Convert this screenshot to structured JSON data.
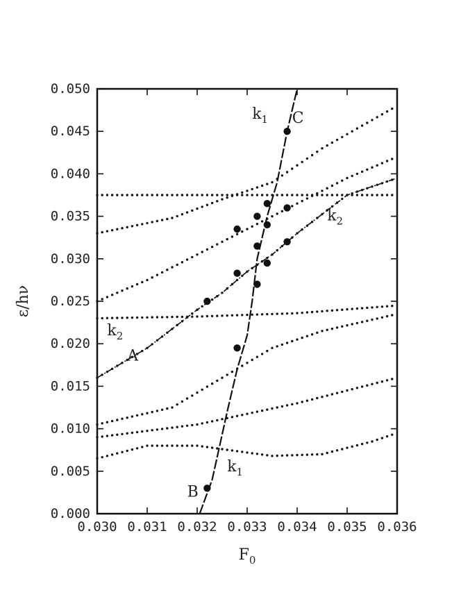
{
  "chart_data": {
    "type": "scatter",
    "xlabel": "F",
    "xlabel_sub": "0",
    "ylabel": "ε/hν",
    "xlim": [
      0.03,
      0.036
    ],
    "ylim": [
      0.0,
      0.05
    ],
    "x_ticks": [
      "0.030",
      "0.031",
      "0.032",
      "0.033",
      "0.034",
      "0.035",
      "0.036"
    ],
    "y_ticks": [
      "0.000",
      "0.005",
      "0.010",
      "0.015",
      "0.020",
      "0.025",
      "0.030",
      "0.035",
      "0.040",
      "0.045",
      "0.050"
    ],
    "grid": false,
    "dotted_curves": [
      {
        "x": [
          0.03,
          0.032,
          0.034,
          0.036
        ],
        "y": [
          0.0375,
          0.0375,
          0.0375,
          0.0375
        ]
      },
      {
        "x": [
          0.03,
          0.032,
          0.034,
          0.036
        ],
        "y": [
          0.023,
          0.0232,
          0.0236,
          0.0245
        ]
      },
      {
        "x": [
          0.03,
          0.031,
          0.032,
          0.0335,
          0.0345,
          0.0355,
          0.036
        ],
        "y": [
          0.0065,
          0.008,
          0.008,
          0.0068,
          0.007,
          0.0085,
          0.0095
        ]
      },
      {
        "x": [
          0.03,
          0.032,
          0.034,
          0.036
        ],
        "y": [
          0.009,
          0.0105,
          0.013,
          0.016
        ]
      },
      {
        "x": [
          0.03,
          0.0315,
          0.0325,
          0.0335,
          0.0345,
          0.036
        ],
        "y": [
          0.0105,
          0.0125,
          0.016,
          0.0195,
          0.0215,
          0.0235
        ]
      },
      {
        "x": [
          0.03,
          0.0315,
          0.0325,
          0.0335,
          0.0345,
          0.036
        ],
        "y": [
          0.033,
          0.0348,
          0.037,
          0.039,
          0.043,
          0.048
        ]
      },
      {
        "x": [
          0.03,
          0.031,
          0.032,
          0.0325,
          0.033,
          0.0335,
          0.034,
          0.035,
          0.036
        ],
        "y": [
          0.025,
          0.0275,
          0.0305,
          0.032,
          0.0335,
          0.035,
          0.0365,
          0.0395,
          0.042
        ]
      },
      {
        "x": [
          0.03,
          0.031,
          0.032,
          0.0325,
          0.033,
          0.0335,
          0.034,
          0.035,
          0.036
        ],
        "y": [
          0.016,
          0.0195,
          0.024,
          0.026,
          0.0285,
          0.0305,
          0.033,
          0.0375,
          0.0395
        ]
      }
    ],
    "curves": [
      {
        "x": [
          0.03205,
          0.0323,
          0.0326,
          0.0328,
          0.033,
          0.0331,
          0.0332,
          0.0334,
          0.0336,
          0.0338,
          0.034
        ],
        "y": [
          0.0,
          0.004,
          0.012,
          0.017,
          0.021,
          0.025,
          0.03,
          0.035,
          0.039,
          0.045,
          0.05
        ]
      },
      {
        "x": [
          0.03,
          0.031,
          0.032,
          0.0325,
          0.033,
          0.0335,
          0.034,
          0.035,
          0.036
        ],
        "y": [
          0.016,
          0.0195,
          0.024,
          0.026,
          0.0285,
          0.0305,
          0.033,
          0.0375,
          0.0395
        ]
      }
    ],
    "marked_points": [
      {
        "x": 0.0322,
        "y": 0.003
      },
      {
        "x": 0.0328,
        "y": 0.0195
      },
      {
        "x": 0.0322,
        "y": 0.025
      },
      {
        "x": 0.0328,
        "y": 0.0283
      },
      {
        "x": 0.0332,
        "y": 0.027
      },
      {
        "x": 0.0332,
        "y": 0.0315
      },
      {
        "x": 0.0334,
        "y": 0.0295
      },
      {
        "x": 0.0328,
        "y": 0.0335
      },
      {
        "x": 0.0332,
        "y": 0.035
      },
      {
        "x": 0.0334,
        "y": 0.034
      },
      {
        "x": 0.0334,
        "y": 0.0365
      },
      {
        "x": 0.0338,
        "y": 0.036
      },
      {
        "x": 0.0338,
        "y": 0.032
      },
      {
        "x": 0.0338,
        "y": 0.045
      }
    ],
    "annotations": [
      {
        "text": "k",
        "sub": "1",
        "x": 0.0331,
        "y": 0.0465
      },
      {
        "text": "C",
        "x": 0.0339,
        "y": 0.046
      },
      {
        "text": "k",
        "sub": "2",
        "x": 0.0346,
        "y": 0.0345
      },
      {
        "text": "k",
        "sub": "2",
        "x": 0.0302,
        "y": 0.021
      },
      {
        "text": "A",
        "x": 0.0306,
        "y": 0.018
      },
      {
        "text": "k",
        "sub": "1",
        "x": 0.0326,
        "y": 0.005
      },
      {
        "text": "B",
        "x": 0.0318,
        "y": 0.002
      }
    ]
  }
}
